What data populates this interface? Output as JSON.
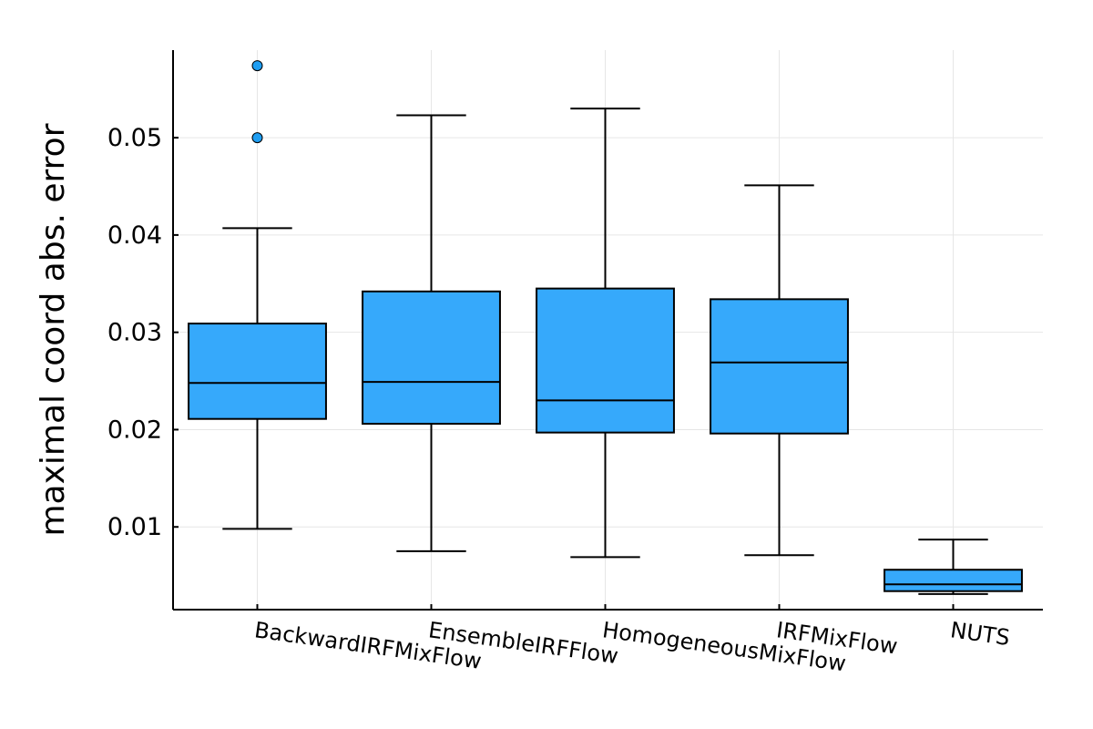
{
  "chart_data": {
    "type": "box",
    "title": "",
    "xlabel": "",
    "ylabel": "maximal coord abs. error",
    "ylim": [
      0.0015,
      0.059
    ],
    "yticks": [
      0.01,
      0.02,
      0.03,
      0.04,
      0.05
    ],
    "ytick_labels": [
      "0.01",
      "0.02",
      "0.03",
      "0.04",
      "0.05"
    ],
    "grid": true,
    "legend": "none",
    "box_color": "#36a9fb",
    "categories": [
      "BackwardIRFMixFlow",
      "EnsembleIRFFlow",
      "HomogeneousMixFlow",
      "IRFMixFlow",
      "NUTS"
    ],
    "boxes": [
      {
        "label": "BackwardIRFMixFlow",
        "whisker_low": 0.0098,
        "q1": 0.0211,
        "median": 0.0248,
        "q3": 0.0309,
        "whisker_high": 0.0407,
        "outliers": [
          0.05,
          0.0574
        ]
      },
      {
        "label": "EnsembleIRFFlow",
        "whisker_low": 0.0075,
        "q1": 0.0206,
        "median": 0.0249,
        "q3": 0.0342,
        "whisker_high": 0.0523,
        "outliers": []
      },
      {
        "label": "HomogeneousMixFlow",
        "whisker_low": 0.0069,
        "q1": 0.0197,
        "median": 0.023,
        "q3": 0.0345,
        "whisker_high": 0.053,
        "outliers": []
      },
      {
        "label": "IRFMixFlow",
        "whisker_low": 0.0071,
        "q1": 0.0196,
        "median": 0.0269,
        "q3": 0.0334,
        "whisker_high": 0.0451,
        "outliers": []
      },
      {
        "label": "NUTS",
        "whisker_low": 0.0031,
        "q1": 0.0034,
        "median": 0.0041,
        "q3": 0.0056,
        "whisker_high": 0.0087,
        "outliers": []
      }
    ]
  }
}
